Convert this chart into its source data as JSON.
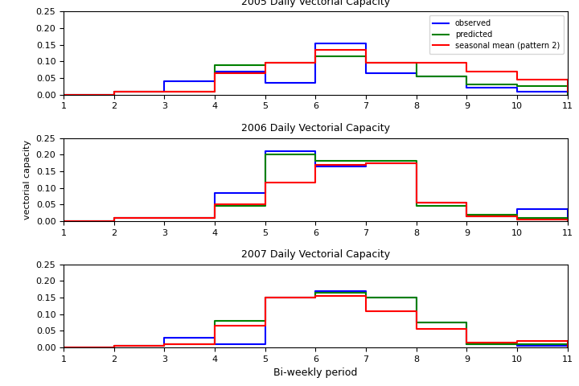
{
  "years": [
    "2005",
    "2006",
    "2007"
  ],
  "titles": [
    "2005 Daily Vectorial Capacity",
    "2006 Daily Vectorial Capacity",
    "2007 Daily Vectorial Capacity"
  ],
  "x_periods": [
    1,
    2,
    3,
    4,
    5,
    6,
    7,
    8,
    9,
    10,
    11
  ],
  "data": {
    "2005": {
      "observed": [
        0.0,
        0.01,
        0.04,
        0.07,
        0.035,
        0.155,
        0.065,
        0.055,
        0.02,
        0.01,
        0.0
      ],
      "predicted": [
        0.0,
        0.01,
        0.01,
        0.09,
        0.095,
        0.115,
        0.095,
        0.055,
        0.03,
        0.025,
        0.0
      ],
      "seasonal_mean": [
        0.0,
        0.01,
        0.01,
        0.065,
        0.095,
        0.135,
        0.095,
        0.095,
        0.07,
        0.045,
        0.01
      ]
    },
    "2006": {
      "observed": [
        0.0,
        0.01,
        0.01,
        0.085,
        0.21,
        0.165,
        0.175,
        0.055,
        0.015,
        0.035,
        0.0
      ],
      "predicted": [
        0.0,
        0.01,
        0.01,
        0.045,
        0.2,
        0.18,
        0.18,
        0.045,
        0.02,
        0.01,
        0.0
      ],
      "seasonal_mean": [
        0.0,
        0.01,
        0.01,
        0.05,
        0.115,
        0.17,
        0.175,
        0.055,
        0.015,
        0.005,
        0.0
      ]
    },
    "2007": {
      "observed": [
        0.0,
        0.005,
        0.03,
        0.01,
        0.15,
        0.17,
        0.15,
        0.075,
        0.01,
        0.005,
        0.0
      ],
      "predicted": [
        0.0,
        0.005,
        0.01,
        0.08,
        0.15,
        0.165,
        0.15,
        0.075,
        0.01,
        0.01,
        0.0
      ],
      "seasonal_mean": [
        0.0,
        0.005,
        0.01,
        0.065,
        0.15,
        0.155,
        0.11,
        0.055,
        0.015,
        0.02,
        0.0
      ]
    }
  },
  "colors": {
    "observed": "#0000FF",
    "predicted": "#008000",
    "seasonal_mean": "#FF0000"
  },
  "legend_labels": {
    "observed": "observed",
    "predicted": "predicted",
    "seasonal_mean": "seasonal mean (pattern 2)"
  },
  "ylim": [
    0,
    0.25
  ],
  "yticks": [
    0,
    0.05,
    0.1,
    0.15,
    0.2,
    0.25
  ],
  "xticks": [
    1,
    2,
    3,
    4,
    5,
    6,
    7,
    8,
    9,
    10,
    11
  ],
  "ylabel": "vectorial capacity",
  "xlabel": "Bi-weekly period",
  "linewidth": 1.5
}
